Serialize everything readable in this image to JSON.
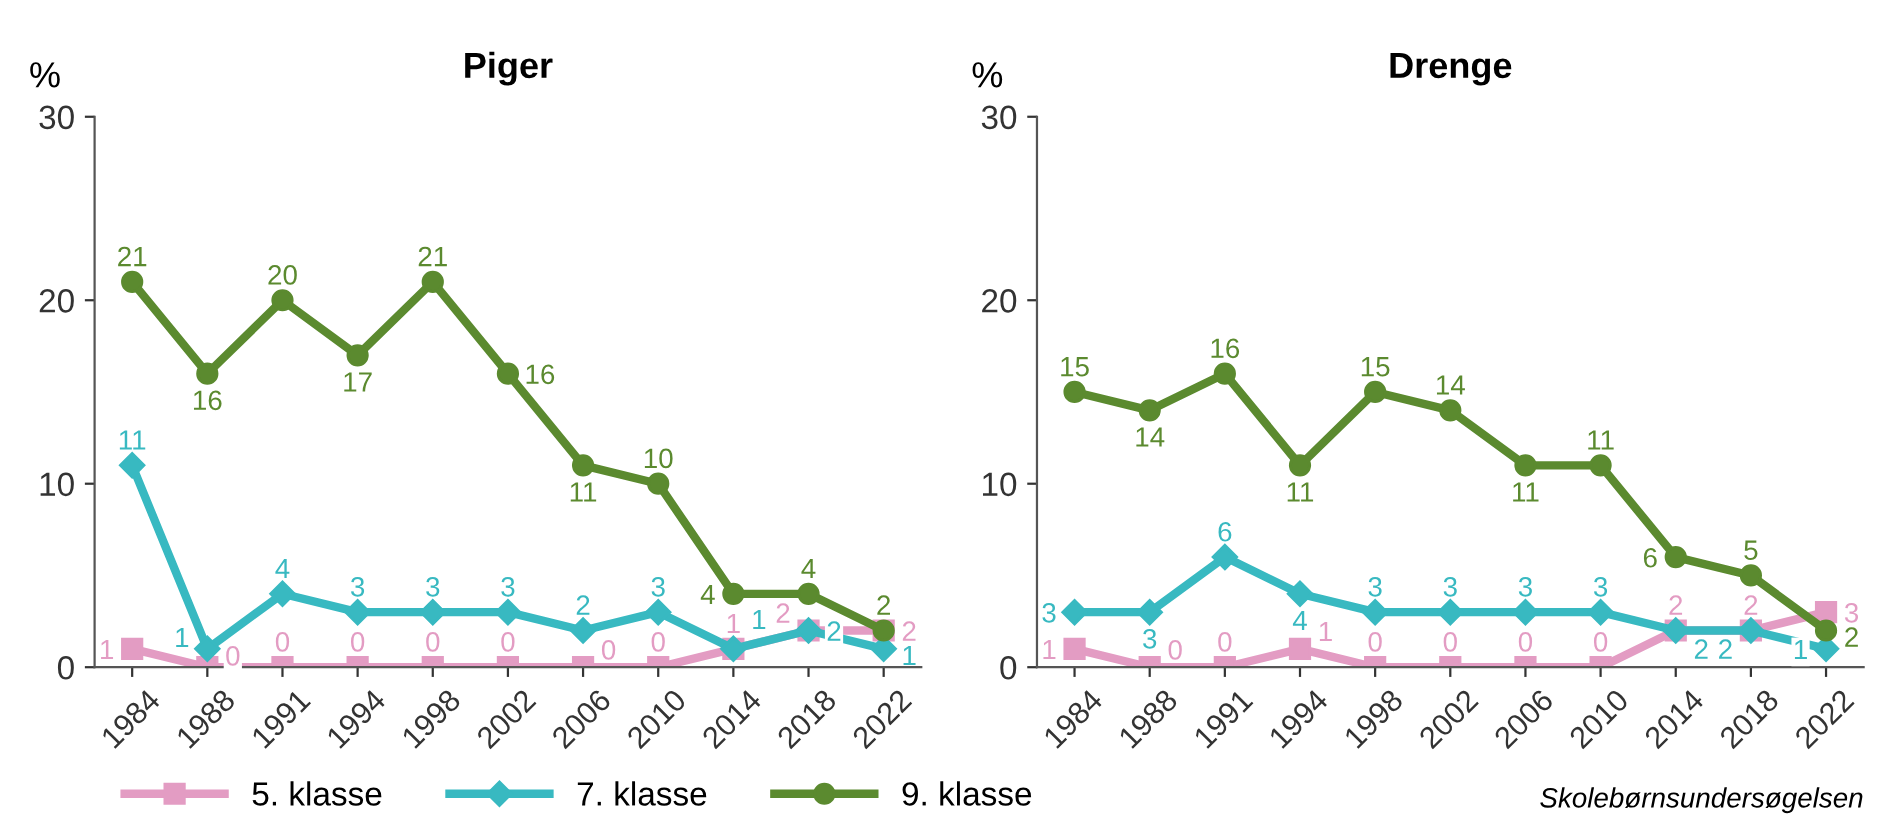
{
  "chart_data": [
    {
      "type": "line",
      "title": "Piger",
      "ylabel": "%",
      "categories": [
        "1984",
        "1988",
        "1991",
        "1994",
        "1998",
        "2002",
        "2006",
        "2010",
        "2014",
        "2018",
        "2022"
      ],
      "ylim": [
        0,
        30
      ],
      "yticks": [
        0,
        10,
        20,
        30
      ],
      "grid": false,
      "legend": "bottom",
      "data_labels": true,
      "series": [
        {
          "name": "5. klasse",
          "color": "#e39cc3",
          "marker": "square",
          "values": [
            1,
            0,
            0,
            0,
            0,
            0,
            0,
            0,
            1,
            2,
            2
          ]
        },
        {
          "name": "7. klasse",
          "color": "#38b9c1",
          "marker": "diamond",
          "values": [
            11,
            1,
            4,
            3,
            3,
            3,
            2,
            3,
            1,
            2,
            1
          ]
        },
        {
          "name": "9. klasse",
          "color": "#5b8a2f",
          "marker": "circle",
          "values": [
            21,
            16,
            20,
            17,
            21,
            16,
            11,
            10,
            4,
            4,
            2
          ]
        }
      ]
    },
    {
      "type": "line",
      "title": "Drenge",
      "ylabel": "%",
      "categories": [
        "1984",
        "1988",
        "1991",
        "1994",
        "1998",
        "2002",
        "2006",
        "2010",
        "2014",
        "2018",
        "2022"
      ],
      "ylim": [
        0,
        30
      ],
      "yticks": [
        0,
        10,
        20,
        30
      ],
      "grid": false,
      "data_labels": true,
      "annotations": [
        "Skolebørnsundersøgelsen"
      ],
      "series": [
        {
          "color": "#e39cc3",
          "marker": "square",
          "values": [
            1,
            0,
            0,
            1,
            0,
            0,
            0,
            0,
            2,
            2,
            3
          ]
        },
        {
          "color": "#38b9c1",
          "marker": "diamond",
          "values": [
            3,
            3,
            6,
            4,
            3,
            3,
            3,
            3,
            2,
            2,
            1
          ]
        },
        {
          "color": "#5b8a2f",
          "marker": "circle",
          "values": [
            15,
            14,
            16,
            11,
            15,
            14,
            11,
            11,
            6,
            5,
            2
          ]
        }
      ]
    }
  ]
}
